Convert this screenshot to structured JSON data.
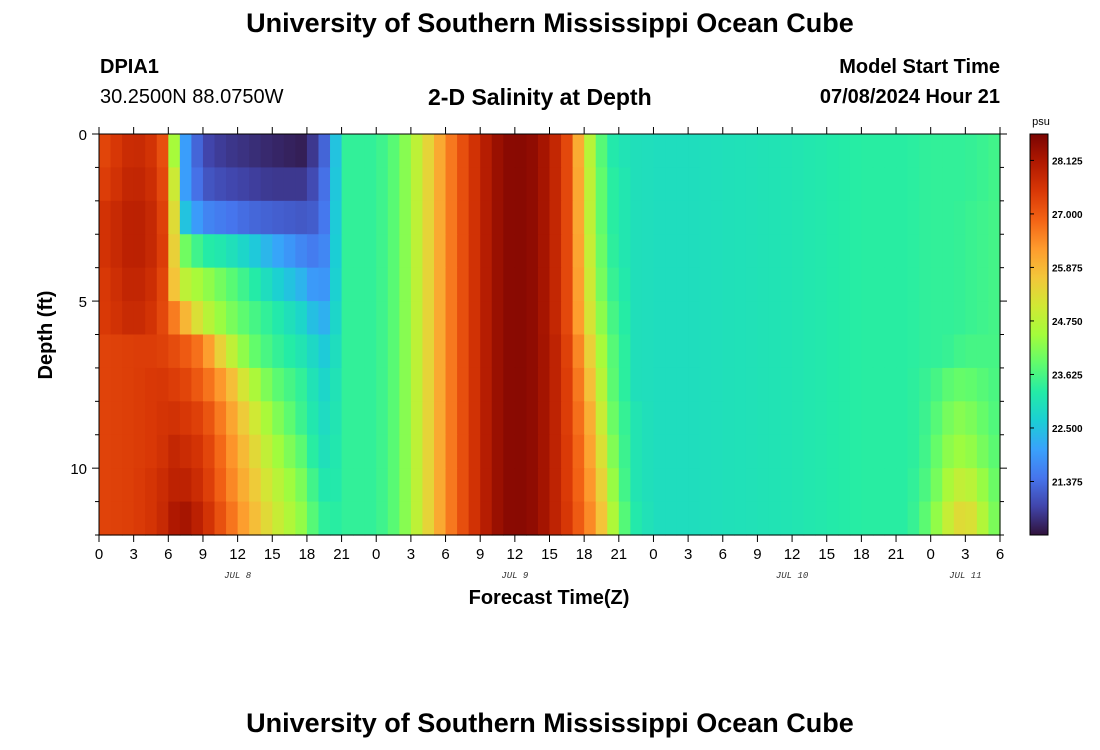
{
  "header": {
    "title": "University of Southern Mississippi Ocean Cube",
    "station_id": "DPIA1",
    "coordinates": "30.2500N  88.0750W",
    "subtitle": "2-D Salinity at Depth",
    "model_start_label": "Model Start Time",
    "model_start_value": "07/08/2024 Hour 21"
  },
  "footer": {
    "title": "University of Southern Mississippi Ocean Cube"
  },
  "colors": {
    "palette": [
      "#30123b",
      "#4145ab",
      "#4675ed",
      "#39a2fc",
      "#1bcfd4",
      "#24eca6",
      "#61fc6c",
      "#a4fc3b",
      "#d1e834",
      "#f3c63a",
      "#fe9b2d",
      "#f36315",
      "#d93806",
      "#b11901",
      "#7a0402"
    ]
  },
  "chart_data": {
    "type": "heatmap",
    "title": "2-D Salinity at Depth",
    "xlabel": "Forecast Time(Z)",
    "ylabel": "Depth (ft)",
    "x_hours_start": 0,
    "x_hours_end": 78,
    "x_step_hours": 1,
    "depth_range_ft": [
      0,
      12
    ],
    "depth_rows": 12,
    "y_ticks": [
      0,
      5,
      10
    ],
    "x_tick_labels": [
      "0",
      "3",
      "6",
      "9",
      "12",
      "15",
      "18",
      "21",
      "0",
      "3",
      "6",
      "9",
      "12",
      "15",
      "18",
      "21",
      "0",
      "3",
      "6",
      "9",
      "12",
      "15",
      "18",
      "21",
      "0",
      "3",
      "6"
    ],
    "day_labels": [
      {
        "label": "JUL 8",
        "hour": 12
      },
      {
        "label": "JUL 9",
        "hour": 36
      },
      {
        "label": "JUL 10",
        "hour": 60
      },
      {
        "label": "JUL 11",
        "hour": 75
      }
    ],
    "colorbar": {
      "unit": "psu",
      "min": 20.25,
      "max": 28.68,
      "ticks": [
        "28.125",
        "27.000",
        "25.875",
        "24.750",
        "23.625",
        "22.500",
        "21.375"
      ]
    },
    "salinity_profiles": {
      "hours": [
        0,
        3,
        5,
        6,
        6.5,
        7.5,
        9,
        11,
        13,
        15,
        17.5,
        18,
        19,
        20,
        21,
        22,
        24,
        26,
        28,
        30,
        32,
        34,
        35,
        36,
        38,
        40,
        41,
        42,
        43,
        44,
        45,
        46.5,
        48,
        51,
        54,
        60,
        66,
        69,
        70,
        71,
        72,
        73,
        74,
        75,
        76,
        77,
        78
      ],
      "rows": [
        [
          27.2,
          27.8,
          27.5,
          26.8,
          24.5,
          22.0,
          20.9,
          20.7,
          20.6,
          20.5,
          20.4,
          20.5,
          20.9,
          21.6,
          23.4,
          23.4,
          23.4,
          23.9,
          25.1,
          26.4,
          27.4,
          28.2,
          28.45,
          28.55,
          28.4,
          27.6,
          26.9,
          25.2,
          24.2,
          23.3,
          23.1,
          23.0,
          22.95,
          22.95,
          23.0,
          23.1,
          23.3,
          23.3,
          23.3,
          23.35,
          23.4,
          23.4,
          23.4,
          23.4,
          23.45,
          23.5,
          23.6
        ],
        [
          27.3,
          27.9,
          27.6,
          26.9,
          25.0,
          22.0,
          21.1,
          20.9,
          20.8,
          20.7,
          20.7,
          20.75,
          21.1,
          21.7,
          23.4,
          23.4,
          23.4,
          23.9,
          25.1,
          26.4,
          27.4,
          28.2,
          28.45,
          28.55,
          28.4,
          27.6,
          26.9,
          25.3,
          24.3,
          23.4,
          23.2,
          23.0,
          22.95,
          22.95,
          23.0,
          23.1,
          23.3,
          23.3,
          23.3,
          23.35,
          23.4,
          23.4,
          23.4,
          23.4,
          23.45,
          23.5,
          23.6
        ],
        [
          27.5,
          28.0,
          27.7,
          27.0,
          25.3,
          22.5,
          21.7,
          21.5,
          21.3,
          21.2,
          21.1,
          21.1,
          21.2,
          21.8,
          23.4,
          23.4,
          23.4,
          23.9,
          25.1,
          26.4,
          27.4,
          28.2,
          28.45,
          28.55,
          28.4,
          27.6,
          26.9,
          25.3,
          24.3,
          23.4,
          23.2,
          23.0,
          22.95,
          22.95,
          23.0,
          23.1,
          23.3,
          23.3,
          23.3,
          23.35,
          23.4,
          23.4,
          23.4,
          23.45,
          23.5,
          23.55,
          23.6
        ],
        [
          27.5,
          28.0,
          27.7,
          27.1,
          25.5,
          24.0,
          23.3,
          23.1,
          22.7,
          22.2,
          21.7,
          21.6,
          21.5,
          21.9,
          23.4,
          23.4,
          23.4,
          23.9,
          25.1,
          26.4,
          27.4,
          28.2,
          28.45,
          28.55,
          28.4,
          27.6,
          26.9,
          25.4,
          24.4,
          23.5,
          23.2,
          23.0,
          22.95,
          22.95,
          23.0,
          23.1,
          23.3,
          23.3,
          23.3,
          23.35,
          23.4,
          23.4,
          23.4,
          23.45,
          23.5,
          23.55,
          23.6
        ],
        [
          27.4,
          27.9,
          27.6,
          27.0,
          25.7,
          24.8,
          24.4,
          23.9,
          23.4,
          22.8,
          22.3,
          22.1,
          21.8,
          22.0,
          23.4,
          23.4,
          23.4,
          23.9,
          25.1,
          26.4,
          27.4,
          28.2,
          28.45,
          28.55,
          28.4,
          27.6,
          26.9,
          25.5,
          24.5,
          23.6,
          23.3,
          23.0,
          22.95,
          22.95,
          23.0,
          23.1,
          23.3,
          23.3,
          23.3,
          23.35,
          23.4,
          23.4,
          23.4,
          23.45,
          23.5,
          23.55,
          23.6
        ],
        [
          27.4,
          27.8,
          27.5,
          27.0,
          26.6,
          25.9,
          24.9,
          24.2,
          23.7,
          23.3,
          22.8,
          22.6,
          22.3,
          22.2,
          23.4,
          23.4,
          23.4,
          23.9,
          25.1,
          26.4,
          27.4,
          28.2,
          28.45,
          28.55,
          28.4,
          27.6,
          26.9,
          25.6,
          24.7,
          23.8,
          23.4,
          23.0,
          22.95,
          22.95,
          23.0,
          23.1,
          23.3,
          23.3,
          23.3,
          23.35,
          23.4,
          23.4,
          23.4,
          23.45,
          23.5,
          23.55,
          23.6
        ],
        [
          27.3,
          27.4,
          27.4,
          27.3,
          27.2,
          27.0,
          26.6,
          25.1,
          24.0,
          23.5,
          23.1,
          23.0,
          22.7,
          22.5,
          23.4,
          23.4,
          23.4,
          23.9,
          25.1,
          26.4,
          27.4,
          28.2,
          28.45,
          28.55,
          28.4,
          27.7,
          27.0,
          26.0,
          25.0,
          24.0,
          23.5,
          23.0,
          22.95,
          22.95,
          23.0,
          23.1,
          23.3,
          23.3,
          23.3,
          23.35,
          23.4,
          23.4,
          23.5,
          23.6,
          23.6,
          23.6,
          23.6
        ],
        [
          27.3,
          27.4,
          27.5,
          27.5,
          27.4,
          27.3,
          26.9,
          26.1,
          24.8,
          23.9,
          23.4,
          23.2,
          22.9,
          22.7,
          23.4,
          23.4,
          23.4,
          23.9,
          25.1,
          26.4,
          27.4,
          28.2,
          28.45,
          28.55,
          28.4,
          27.7,
          27.1,
          26.2,
          25.3,
          24.1,
          23.5,
          23.0,
          22.95,
          22.95,
          23.0,
          23.1,
          23.3,
          23.3,
          23.3,
          23.4,
          23.5,
          23.7,
          23.9,
          23.9,
          23.8,
          23.7,
          23.6
        ],
        [
          27.3,
          27.4,
          27.5,
          27.6,
          27.6,
          27.5,
          27.3,
          26.4,
          25.3,
          24.3,
          23.5,
          23.3,
          23.0,
          22.8,
          23.4,
          23.4,
          23.4,
          23.9,
          25.1,
          26.4,
          27.4,
          28.2,
          28.45,
          28.55,
          28.4,
          27.7,
          27.1,
          26.4,
          25.6,
          24.3,
          23.6,
          23.1,
          22.95,
          22.95,
          23.0,
          23.1,
          23.3,
          23.3,
          23.3,
          23.4,
          23.6,
          23.9,
          24.2,
          24.2,
          24.0,
          23.8,
          23.6
        ],
        [
          27.3,
          27.4,
          27.5,
          27.7,
          27.8,
          27.7,
          27.5,
          26.6,
          25.6,
          24.6,
          23.8,
          23.5,
          23.1,
          22.9,
          23.4,
          23.4,
          23.4,
          23.9,
          25.1,
          26.4,
          27.4,
          28.2,
          28.45,
          28.55,
          28.4,
          27.7,
          27.2,
          26.5,
          25.8,
          24.6,
          23.7,
          23.1,
          22.95,
          22.95,
          23.0,
          23.1,
          23.3,
          23.3,
          23.3,
          23.4,
          23.7,
          24.1,
          24.4,
          24.4,
          24.2,
          23.9,
          23.7
        ],
        [
          27.3,
          27.4,
          27.6,
          27.8,
          27.9,
          27.9,
          27.6,
          26.7,
          25.8,
          24.9,
          24.1,
          23.8,
          23.3,
          23.0,
          23.4,
          23.4,
          23.4,
          23.9,
          25.1,
          26.4,
          27.4,
          28.2,
          28.45,
          28.55,
          28.4,
          27.7,
          27.2,
          26.6,
          26.0,
          24.9,
          23.8,
          23.1,
          22.95,
          22.95,
          23.0,
          23.1,
          23.3,
          23.3,
          23.3,
          23.5,
          23.8,
          24.3,
          24.8,
          24.9,
          24.6,
          24.1,
          23.8
        ],
        [
          27.3,
          27.4,
          27.6,
          27.9,
          28.1,
          28.2,
          27.8,
          26.9,
          26.0,
          25.1,
          24.3,
          24.0,
          23.5,
          23.2,
          23.4,
          23.4,
          23.4,
          23.9,
          25.1,
          26.4,
          27.4,
          28.2,
          28.45,
          28.55,
          28.4,
          27.7,
          27.3,
          26.7,
          26.2,
          25.2,
          24.0,
          23.2,
          22.95,
          22.95,
          23.0,
          23.1,
          23.3,
          23.3,
          23.3,
          23.6,
          24.0,
          24.6,
          25.2,
          25.4,
          25.0,
          24.3,
          23.9
        ]
      ]
    }
  }
}
